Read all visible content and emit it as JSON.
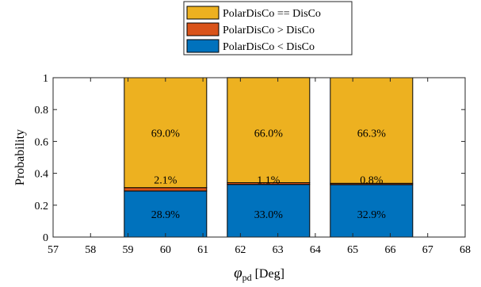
{
  "chart_data": {
    "type": "bar",
    "stacked": true,
    "xlabel_symbol": "φ",
    "xlabel_subscript": "pd",
    "xlabel_unit": "[Deg]",
    "ylabel": "Probability",
    "xlim": [
      57,
      68
    ],
    "ylim": [
      0,
      1
    ],
    "xticks": [
      "57",
      "58",
      "59",
      "60",
      "61",
      "62",
      "63",
      "64",
      "65",
      "66",
      "67",
      "68"
    ],
    "yticks": [
      "0",
      "0.2",
      "0.4",
      "0.6",
      "0.8",
      "1"
    ],
    "x_centers": [
      60,
      62.75,
      65.5
    ],
    "bar_width": 2.2,
    "legend_position": "top-center",
    "series": [
      {
        "name": "PolarDisCo < DisCo",
        "color": "#0072BD",
        "values": [
          0.289,
          0.33,
          0.329
        ],
        "labels": [
          "28.9%",
          "33.0%",
          "32.9%"
        ]
      },
      {
        "name": "PolarDisCo > DisCo",
        "color": "#D95319",
        "values": [
          0.021,
          0.011,
          0.008
        ],
        "labels": [
          "2.1%",
          "1.1%",
          "0.8%"
        ]
      },
      {
        "name": "PolarDisCo == DisCo",
        "color": "#EDB120",
        "values": [
          0.69,
          0.66,
          0.663
        ],
        "labels": [
          "69.0%",
          "66.0%",
          "66.3%"
        ]
      }
    ],
    "legend_order": [
      2,
      1,
      0
    ],
    "grid": false
  }
}
